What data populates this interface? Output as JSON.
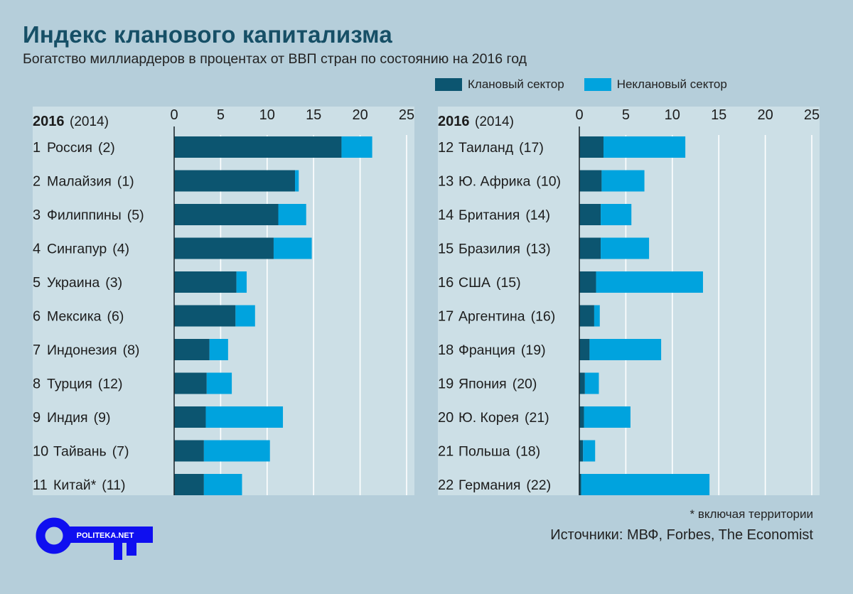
{
  "title": "Индекс кланового капитализма",
  "subtitle": "Богатство миллиардеров в процентах от ВВП стран по состоянию на 2016 год",
  "legend": {
    "crony": "Клановый сектор",
    "noncrony": "Неклановый сектор"
  },
  "colors": {
    "crony": "#0c5570",
    "noncrony": "#00a3de",
    "panel_bg": "#ccdfe6",
    "page_bg": "#b5ceda",
    "title": "#164f66"
  },
  "header": {
    "year_main": "2016",
    "year_prev": "(2014)"
  },
  "footnote": "* включая территории",
  "sources": "Источники: МВФ, Forbes, The Economist",
  "logo_text": "POLITEKA.NET",
  "chart_data": [
    {
      "type": "bar",
      "orientation": "horizontal",
      "stacked": true,
      "xlim": [
        0,
        25
      ],
      "ticks": [
        0,
        5,
        10,
        15,
        20,
        25
      ],
      "grid": true,
      "categories": [
        "Россия",
        "Малайзия",
        "Филиппины",
        "Сингапур",
        "Украина",
        "Мексика",
        "Индонезия",
        "Турция",
        "Индия",
        "Тайвань",
        "Китай*"
      ],
      "rank_2016": [
        "1",
        "2",
        "3",
        "4",
        "5",
        "6",
        "7",
        "8",
        "9",
        "10",
        "11"
      ],
      "rank_2014": [
        "(2)",
        "(1)",
        "(5)",
        "(4)",
        "(3)",
        "(6)",
        "(8)",
        "(12)",
        "(9)",
        "(7)",
        "(11)"
      ],
      "series": [
        {
          "name": "Клановый сектор",
          "values": [
            18.0,
            13.0,
            11.2,
            10.7,
            6.7,
            6.6,
            3.8,
            3.5,
            3.4,
            3.2,
            3.2
          ]
        },
        {
          "name": "Неклановый сектор",
          "values": [
            3.3,
            0.4,
            3.0,
            4.1,
            1.1,
            2.1,
            2.0,
            2.7,
            8.3,
            7.1,
            4.1
          ]
        }
      ]
    },
    {
      "type": "bar",
      "orientation": "horizontal",
      "stacked": true,
      "xlim": [
        0,
        25
      ],
      "ticks": [
        0,
        5,
        10,
        15,
        20,
        25
      ],
      "grid": true,
      "categories": [
        "Таиланд",
        "Ю. Африка",
        "Британия",
        "Бразилия",
        "США",
        "Аргентина",
        "Франция",
        "Япония",
        "Ю. Корея",
        "Польша",
        "Германия"
      ],
      "rank_2016": [
        "12",
        "13",
        "14",
        "15",
        "16",
        "17",
        "18",
        "19",
        "20",
        "21",
        "22"
      ],
      "rank_2014": [
        "(17)",
        "(10)",
        "(14)",
        "(13)",
        "(15)",
        "(16)",
        "(19)",
        "(20)",
        "(21)",
        "(18)",
        "(22)"
      ],
      "series": [
        {
          "name": "Клановый сектор",
          "values": [
            2.6,
            2.4,
            2.3,
            2.3,
            1.8,
            1.6,
            1.1,
            0.6,
            0.5,
            0.4,
            0.2
          ]
        },
        {
          "name": "Неклановый сектор",
          "values": [
            8.8,
            4.6,
            3.3,
            5.2,
            11.5,
            0.6,
            7.7,
            1.5,
            5.0,
            1.3,
            13.8
          ]
        }
      ]
    }
  ]
}
